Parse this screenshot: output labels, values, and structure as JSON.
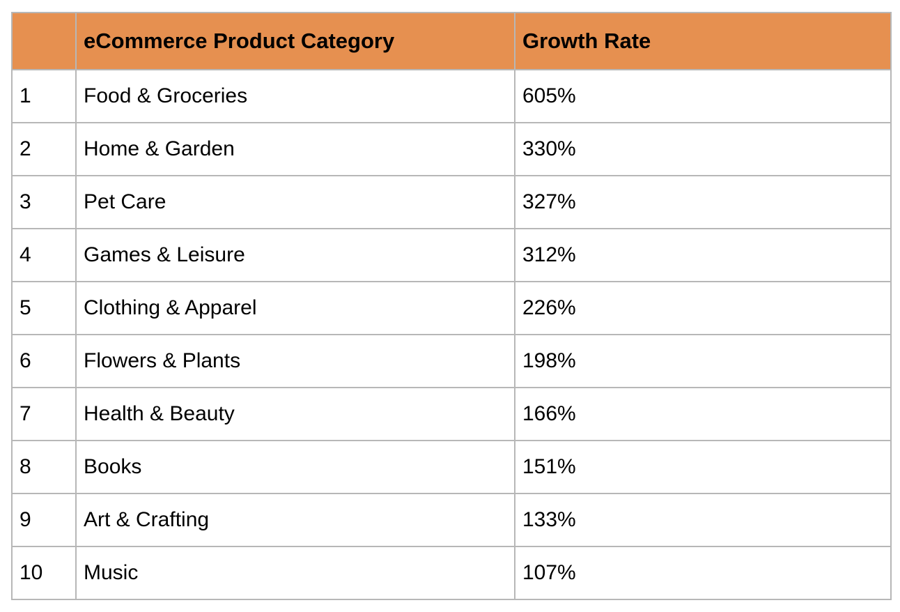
{
  "table": {
    "headers": [
      "",
      "eCommerce Product Category",
      "Growth Rate"
    ],
    "header_color": "#e69050",
    "rows": [
      {
        "rank": "1",
        "category": "Food & Groceries",
        "growth": "605%"
      },
      {
        "rank": "2",
        "category": "Home & Garden",
        "growth": "330%"
      },
      {
        "rank": "3",
        "category": "Pet Care",
        "growth": "327%"
      },
      {
        "rank": "4",
        "category": "Games & Leisure",
        "growth": "312%"
      },
      {
        "rank": "5",
        "category": "Clothing & Apparel",
        "growth": "226%"
      },
      {
        "rank": "6",
        "category": "Flowers & Plants",
        "growth": "198%"
      },
      {
        "rank": "7",
        "category": "Health & Beauty",
        "growth": "166%"
      },
      {
        "rank": "8",
        "category": "Books",
        "growth": "151%"
      },
      {
        "rank": "9",
        "category": "Art & Crafting",
        "growth": "133%"
      },
      {
        "rank": "10",
        "category": "Music",
        "growth": "107%"
      }
    ]
  }
}
